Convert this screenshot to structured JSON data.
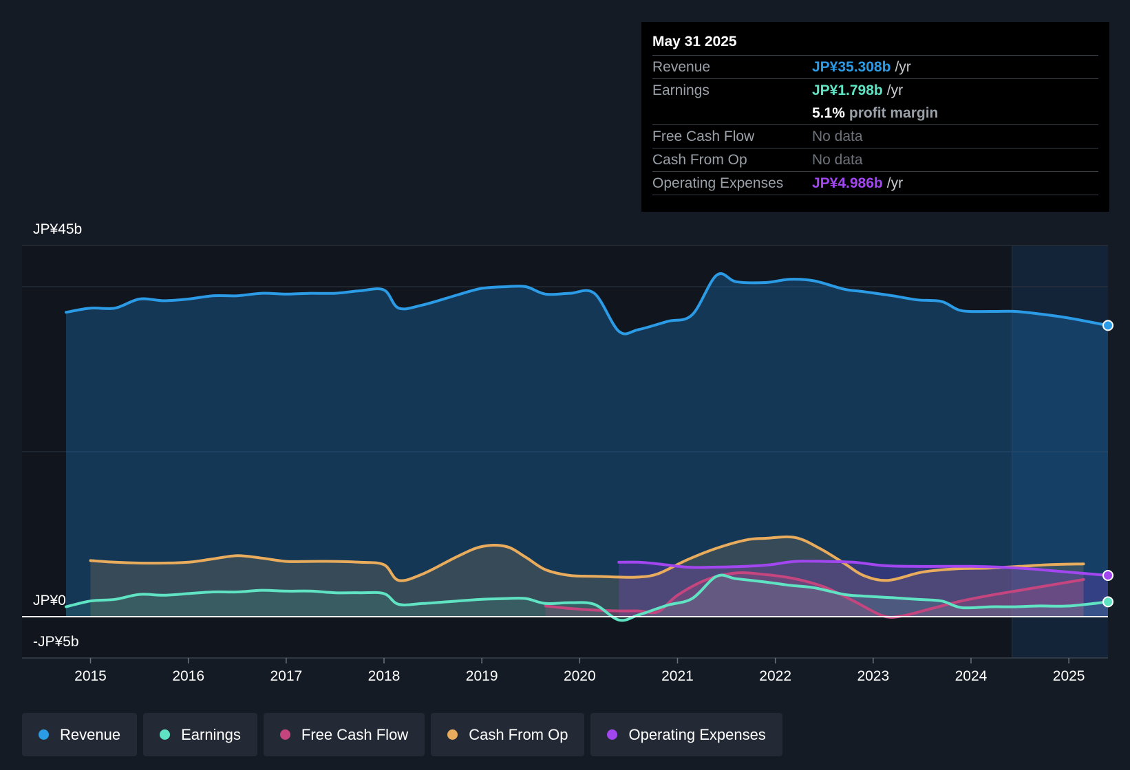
{
  "chart_data": {
    "type": "area",
    "currency_prefix": "JP¥",
    "y_labels": [
      "JP¥45b",
      "JP¥0",
      "-JP¥5b"
    ],
    "ylim": [
      -5,
      45
    ],
    "xlim": [
      2014.3,
      2025.4
    ],
    "x_ticks": [
      "2015",
      "2016",
      "2017",
      "2018",
      "2019",
      "2020",
      "2021",
      "2022",
      "2023",
      "2024",
      "2025"
    ],
    "forecast_start": 2024.42,
    "series": [
      {
        "name": "Revenue",
        "color": "#2c9be6",
        "points": [
          [
            2014.75,
            36.9
          ],
          [
            2015.0,
            37.4
          ],
          [
            2015.25,
            37.4
          ],
          [
            2015.5,
            38.5
          ],
          [
            2015.75,
            38.3
          ],
          [
            2016.0,
            38.5
          ],
          [
            2016.25,
            38.9
          ],
          [
            2016.5,
            38.9
          ],
          [
            2016.75,
            39.2
          ],
          [
            2017.0,
            39.1
          ],
          [
            2017.25,
            39.2
          ],
          [
            2017.5,
            39.2
          ],
          [
            2017.75,
            39.5
          ],
          [
            2018.0,
            39.6
          ],
          [
            2018.15,
            37.4
          ],
          [
            2018.4,
            37.8
          ],
          [
            2018.75,
            39.0
          ],
          [
            2019.0,
            39.8
          ],
          [
            2019.25,
            40.0
          ],
          [
            2019.45,
            40.0
          ],
          [
            2019.65,
            39.1
          ],
          [
            2019.9,
            39.2
          ],
          [
            2020.15,
            39.2
          ],
          [
            2020.4,
            34.6
          ],
          [
            2020.6,
            34.8
          ],
          [
            2020.9,
            35.8
          ],
          [
            2021.15,
            36.6
          ],
          [
            2021.4,
            41.4
          ],
          [
            2021.6,
            40.6
          ],
          [
            2021.9,
            40.5
          ],
          [
            2022.15,
            40.9
          ],
          [
            2022.4,
            40.7
          ],
          [
            2022.7,
            39.7
          ],
          [
            2022.9,
            39.4
          ],
          [
            2023.2,
            38.9
          ],
          [
            2023.45,
            38.4
          ],
          [
            2023.7,
            38.2
          ],
          [
            2023.9,
            37.1
          ],
          [
            2024.2,
            37.0
          ],
          [
            2024.45,
            37.0
          ],
          [
            2024.7,
            36.7
          ],
          [
            2025.0,
            36.2
          ],
          [
            2025.4,
            35.3
          ]
        ]
      },
      {
        "name": "Earnings",
        "color": "#5fe3c3",
        "points": [
          [
            2014.75,
            1.2
          ],
          [
            2015.0,
            1.9
          ],
          [
            2015.25,
            2.1
          ],
          [
            2015.5,
            2.7
          ],
          [
            2015.75,
            2.6
          ],
          [
            2016.0,
            2.8
          ],
          [
            2016.25,
            3.0
          ],
          [
            2016.5,
            3.0
          ],
          [
            2016.75,
            3.2
          ],
          [
            2017.0,
            3.1
          ],
          [
            2017.25,
            3.1
          ],
          [
            2017.5,
            2.9
          ],
          [
            2017.75,
            2.9
          ],
          [
            2018.0,
            2.8
          ],
          [
            2018.15,
            1.5
          ],
          [
            2018.4,
            1.6
          ],
          [
            2018.75,
            1.9
          ],
          [
            2019.0,
            2.1
          ],
          [
            2019.25,
            2.2
          ],
          [
            2019.45,
            2.2
          ],
          [
            2019.65,
            1.6
          ],
          [
            2019.9,
            1.7
          ],
          [
            2020.15,
            1.5
          ],
          [
            2020.4,
            -0.4
          ],
          [
            2020.6,
            0.2
          ],
          [
            2020.9,
            1.4
          ],
          [
            2021.15,
            2.2
          ],
          [
            2021.4,
            4.9
          ],
          [
            2021.6,
            4.6
          ],
          [
            2021.9,
            4.2
          ],
          [
            2022.15,
            3.8
          ],
          [
            2022.4,
            3.5
          ],
          [
            2022.7,
            2.7
          ],
          [
            2022.9,
            2.5
          ],
          [
            2023.2,
            2.3
          ],
          [
            2023.45,
            2.1
          ],
          [
            2023.7,
            1.9
          ],
          [
            2023.9,
            1.1
          ],
          [
            2024.2,
            1.2
          ],
          [
            2024.45,
            1.2
          ],
          [
            2024.7,
            1.3
          ],
          [
            2025.0,
            1.3
          ],
          [
            2025.4,
            1.8
          ]
        ]
      },
      {
        "name": "Free Cash Flow",
        "color": "#c5457e",
        "points": [
          [
            2019.65,
            1.3
          ],
          [
            2019.9,
            1.0
          ],
          [
            2020.15,
            0.8
          ],
          [
            2020.4,
            0.7
          ],
          [
            2020.6,
            0.7
          ],
          [
            2020.8,
            0.6
          ],
          [
            2021.0,
            2.6
          ],
          [
            2021.3,
            4.5
          ],
          [
            2021.6,
            5.3
          ],
          [
            2021.9,
            5.1
          ],
          [
            2022.2,
            4.6
          ],
          [
            2022.5,
            3.6
          ],
          [
            2022.8,
            1.9
          ],
          [
            2023.1,
            0.1
          ],
          [
            2023.3,
            0.1
          ],
          [
            2023.6,
            1.0
          ],
          [
            2023.9,
            1.9
          ],
          [
            2024.2,
            2.6
          ],
          [
            2024.5,
            3.2
          ],
          [
            2024.8,
            3.8
          ],
          [
            2025.15,
            4.5
          ]
        ]
      },
      {
        "name": "Cash From Op",
        "color": "#e8ac5c",
        "points": [
          [
            2015.0,
            6.8
          ],
          [
            2015.25,
            6.6
          ],
          [
            2015.5,
            6.5
          ],
          [
            2015.75,
            6.5
          ],
          [
            2016.0,
            6.6
          ],
          [
            2016.25,
            7.0
          ],
          [
            2016.5,
            7.4
          ],
          [
            2016.75,
            7.1
          ],
          [
            2017.0,
            6.7
          ],
          [
            2017.25,
            6.7
          ],
          [
            2017.5,
            6.7
          ],
          [
            2017.75,
            6.6
          ],
          [
            2018.0,
            6.3
          ],
          [
            2018.15,
            4.4
          ],
          [
            2018.4,
            5.2
          ],
          [
            2018.75,
            7.3
          ],
          [
            2019.0,
            8.5
          ],
          [
            2019.25,
            8.5
          ],
          [
            2019.45,
            7.2
          ],
          [
            2019.65,
            5.7
          ],
          [
            2019.9,
            5.0
          ],
          [
            2020.15,
            4.9
          ],
          [
            2020.4,
            4.8
          ],
          [
            2020.6,
            4.8
          ],
          [
            2020.8,
            5.2
          ],
          [
            2021.1,
            6.9
          ],
          [
            2021.4,
            8.3
          ],
          [
            2021.7,
            9.3
          ],
          [
            2021.9,
            9.5
          ],
          [
            2022.2,
            9.6
          ],
          [
            2022.45,
            8.3
          ],
          [
            2022.7,
            6.5
          ],
          [
            2022.9,
            5.0
          ],
          [
            2023.15,
            4.4
          ],
          [
            2023.5,
            5.4
          ],
          [
            2023.85,
            5.8
          ],
          [
            2024.2,
            5.9
          ],
          [
            2024.5,
            6.1
          ],
          [
            2024.8,
            6.3
          ],
          [
            2025.15,
            6.4
          ]
        ]
      },
      {
        "name": "Operating Expenses",
        "color": "#a246f0",
        "points": [
          [
            2020.4,
            6.6
          ],
          [
            2020.6,
            6.6
          ],
          [
            2020.8,
            6.4
          ],
          [
            2021.1,
            6.0
          ],
          [
            2021.35,
            6.0
          ],
          [
            2021.7,
            6.1
          ],
          [
            2021.95,
            6.3
          ],
          [
            2022.2,
            6.7
          ],
          [
            2022.5,
            6.7
          ],
          [
            2022.8,
            6.6
          ],
          [
            2023.1,
            6.2
          ],
          [
            2023.4,
            6.1
          ],
          [
            2023.7,
            6.1
          ],
          [
            2024.0,
            6.1
          ],
          [
            2024.3,
            6.0
          ],
          [
            2024.6,
            5.8
          ],
          [
            2024.9,
            5.5
          ],
          [
            2025.2,
            5.2
          ],
          [
            2025.4,
            5.0
          ]
        ]
      }
    ]
  },
  "tooltip": {
    "date": "May 31 2025",
    "rows": [
      {
        "label": "Revenue",
        "value": "JP¥35.308b",
        "unit": "/yr",
        "color": "#2c9be6"
      },
      {
        "label": "Earnings",
        "value": "JP¥1.798b",
        "unit": "/yr",
        "color": "#5fe3c3"
      },
      {
        "label": "",
        "value": "5.1%",
        "unit": "profit margin",
        "color": "#ffffff"
      },
      {
        "label": "Free Cash Flow",
        "value": "No data",
        "unit": "",
        "color": "#6e737b"
      },
      {
        "label": "Cash From Op",
        "value": "No data",
        "unit": "",
        "color": "#6e737b"
      },
      {
        "label": "Operating Expenses",
        "value": "JP¥4.986b",
        "unit": "/yr",
        "color": "#a246f0"
      }
    ]
  },
  "legend": [
    {
      "label": "Revenue",
      "color": "#2c9be6"
    },
    {
      "label": "Earnings",
      "color": "#5fe3c3"
    },
    {
      "label": "Free Cash Flow",
      "color": "#c5457e"
    },
    {
      "label": "Cash From Op",
      "color": "#e8ac5c"
    },
    {
      "label": "Operating Expenses",
      "color": "#a246f0"
    }
  ]
}
